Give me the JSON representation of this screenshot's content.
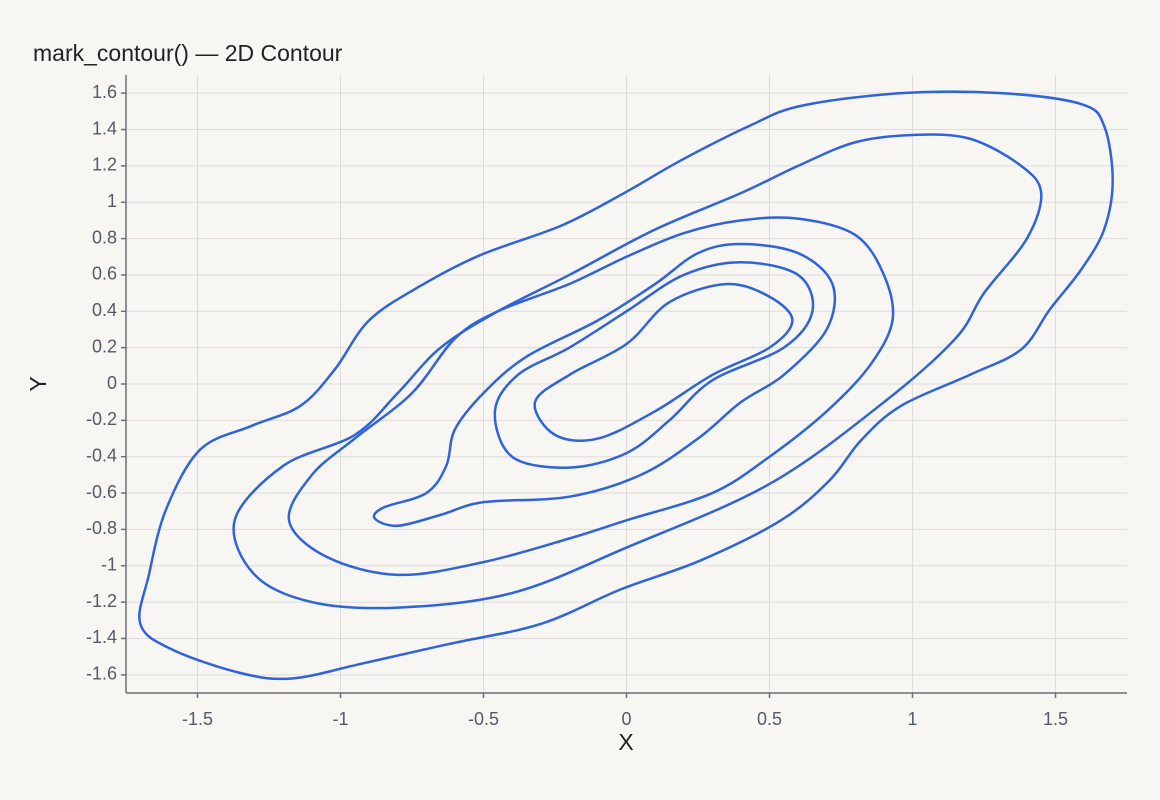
{
  "chart_data": {
    "type": "contour",
    "title": "mark_contour() — 2D Contour",
    "x_label": "X",
    "y_label": "Y",
    "color": "#2f63dc",
    "grid": true,
    "xlim": [
      -1.75,
      1.75
    ],
    "ylim": [
      -1.7,
      1.7
    ],
    "xticks": [
      -1.5,
      -1,
      -0.5,
      0,
      0.5,
      1,
      1.5
    ],
    "yticks": [
      -1.6,
      -1.4,
      -1.2,
      -1,
      -0.8,
      -0.6,
      -0.4,
      -0.2,
      0,
      0.2,
      0.4,
      0.6,
      0.8,
      1,
      1.2,
      1.4,
      1.6
    ],
    "contours": [
      {
        "x": [
          0.43,
          0.61,
          0.96,
          1.31,
          1.59,
          1.67,
          1.7,
          1.67,
          1.59,
          1.48,
          1.38,
          1.2,
          0.96,
          0.82,
          0.71,
          0.54,
          0.26,
          -0.02,
          -0.3,
          -0.62,
          -0.93,
          -1.17,
          -1.35,
          -1.59,
          -1.7,
          -1.67,
          -1.61,
          -1.49,
          -1.31,
          -1.14,
          -1.02,
          -0.9,
          -0.72,
          -0.51,
          -0.23,
          -0.02,
          0.19
        ],
        "y": [
          1.42,
          1.53,
          1.6,
          1.6,
          1.54,
          1.42,
          1.12,
          0.85,
          0.63,
          0.41,
          0.19,
          0.05,
          -0.12,
          -0.31,
          -0.53,
          -0.75,
          -0.97,
          -1.13,
          -1.32,
          -1.43,
          -1.54,
          -1.62,
          -1.59,
          -1.46,
          -1.32,
          -1.05,
          -0.69,
          -0.36,
          -0.23,
          -0.12,
          0.08,
          0.35,
          0.54,
          0.71,
          0.87,
          1.04,
          1.23
        ]
      },
      {
        "x": [
          1.0,
          1.2,
          1.38,
          1.45,
          1.4,
          1.25,
          1.15,
          0.9,
          0.5,
          0.0,
          -0.4,
          -0.8,
          -1.1,
          -1.3,
          -1.37,
          -1.2,
          -0.95,
          -0.8,
          -0.65,
          -0.45,
          -0.2,
          0.1,
          0.4,
          0.6,
          0.8
        ],
        "y": [
          1.37,
          1.35,
          1.2,
          1.05,
          0.8,
          0.5,
          0.25,
          -0.1,
          -0.55,
          -0.9,
          -1.15,
          -1.23,
          -1.2,
          -1.05,
          -0.75,
          -0.45,
          -0.28,
          -0.05,
          0.2,
          0.4,
          0.6,
          0.85,
          1.05,
          1.2,
          1.33
        ]
      },
      {
        "x": [
          0.6,
          0.8,
          0.9,
          0.93,
          0.85,
          0.7,
          0.5,
          0.3,
          0.0,
          -0.2,
          -0.5,
          -0.8,
          -1.05,
          -1.18,
          -1.1,
          -0.95,
          -0.75,
          -0.6,
          -0.45,
          -0.2,
          0.0,
          0.2,
          0.4
        ],
        "y": [
          0.91,
          0.82,
          0.6,
          0.35,
          0.1,
          -0.15,
          -0.4,
          -0.6,
          -0.75,
          -0.85,
          -0.98,
          -1.05,
          -0.95,
          -0.75,
          -0.5,
          -0.3,
          -0.05,
          0.25,
          0.4,
          0.55,
          0.7,
          0.83,
          0.9
        ]
      },
      {
        "x": [
          0.4,
          0.6,
          0.72,
          0.7,
          0.55,
          0.4,
          0.25,
          0.05,
          -0.2,
          -0.5,
          -0.65,
          -0.8,
          -0.88,
          -0.85,
          -0.7,
          -0.63,
          -0.6,
          -0.5,
          -0.35,
          -0.1,
          0.1,
          0.25
        ],
        "y": [
          0.77,
          0.72,
          0.55,
          0.3,
          0.05,
          -0.1,
          -0.3,
          -0.5,
          -0.62,
          -0.65,
          -0.72,
          -0.78,
          -0.74,
          -0.68,
          -0.6,
          -0.45,
          -0.25,
          -0.05,
          0.15,
          0.35,
          0.55,
          0.72
        ]
      },
      {
        "x": [
          0.4,
          0.6,
          0.65,
          0.55,
          0.3,
          0.15,
          0.0,
          -0.2,
          -0.4,
          -0.46,
          -0.38,
          -0.2,
          0.0,
          0.2
        ],
        "y": [
          0.67,
          0.6,
          0.4,
          0.2,
          0.02,
          -0.2,
          -0.38,
          -0.46,
          -0.4,
          -0.15,
          0.05,
          0.2,
          0.4,
          0.6
        ]
      },
      {
        "x": [
          0.35,
          0.5,
          0.58,
          0.5,
          0.3,
          0.1,
          -0.1,
          -0.25,
          -0.32,
          -0.2,
          0.0,
          0.15
        ],
        "y": [
          0.55,
          0.48,
          0.35,
          0.2,
          0.05,
          -0.15,
          -0.3,
          -0.28,
          -0.1,
          0.05,
          0.22,
          0.45
        ]
      }
    ]
  }
}
